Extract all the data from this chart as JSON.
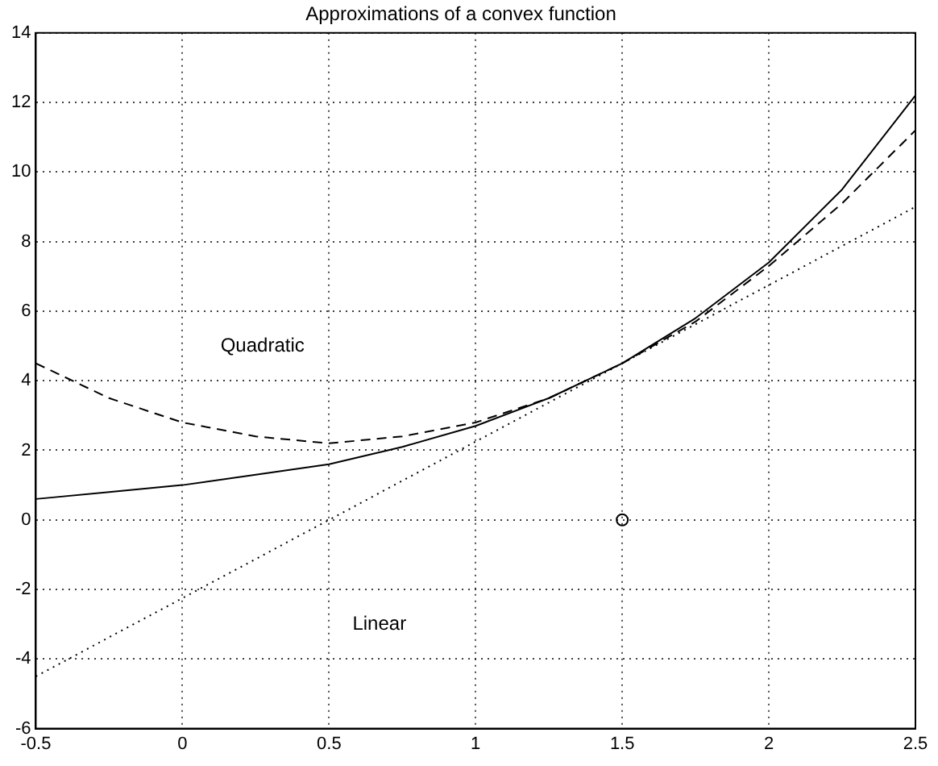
{
  "chart_data": {
    "type": "line",
    "title": "Approximations of a convex function",
    "series": [
      {
        "color": "#000000",
        "line_style": "solid",
        "marker": "none",
        "x": [
          -0.5,
          -0.25,
          0,
          0.25,
          0.5,
          0.75,
          1,
          1.25,
          1.5,
          1.75,
          2,
          2.25,
          2.5
        ],
        "values": [
          0.6,
          0.8,
          1.0,
          1.3,
          1.6,
          2.1,
          2.7,
          3.5,
          4.5,
          5.8,
          7.4,
          9.5,
          12.2
        ]
      },
      {
        "color": "#000000",
        "line_style": "dashed",
        "marker": "none",
        "x": [
          -0.5,
          -0.25,
          0,
          0.25,
          0.5,
          0.75,
          1,
          1.25,
          1.5,
          1.75,
          2,
          2.25,
          2.5
        ],
        "values": [
          4.5,
          3.5,
          2.8,
          2.4,
          2.2,
          2.4,
          2.8,
          3.5,
          4.5,
          5.7,
          7.3,
          9.1,
          11.2
        ]
      },
      {
        "color": "#000000",
        "line_style": "dotted",
        "marker": "none",
        "x": [
          -0.5,
          2.5
        ],
        "values": [
          -4.5,
          9.0
        ]
      },
      {
        "type": "scatter",
        "color": "#000000",
        "marker": "circle",
        "x": [
          1.5
        ],
        "values": [
          0
        ]
      }
    ],
    "annotations": [
      "Quadratic",
      "Linear"
    ],
    "xlim": [
      -0.5,
      2.5
    ],
    "xticks": [
      -0.5,
      0,
      0.5,
      1,
      1.5,
      2,
      2.5
    ],
    "ylim": [
      -6,
      14
    ],
    "yticks": [
      -6,
      -4,
      -2,
      0,
      2,
      4,
      6,
      8,
      10,
      12,
      14
    ],
    "grid": true,
    "legend": false
  }
}
